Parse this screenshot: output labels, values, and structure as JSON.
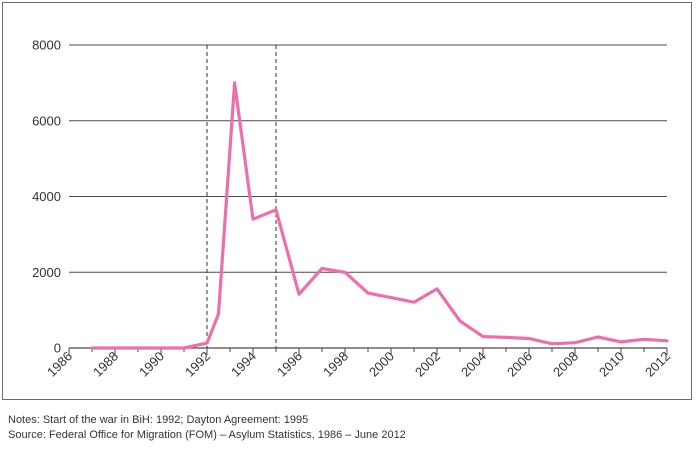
{
  "chart_data": {
    "type": "line",
    "title": "",
    "xlabel": "",
    "ylabel": "",
    "xlim": [
      1986,
      2012
    ],
    "ylim": [
      0,
      8000
    ],
    "x_ticks": [
      "1986",
      "1988",
      "1990",
      "1992",
      "1994",
      "1996",
      "1998",
      "2000",
      "2002",
      "2004",
      "2006",
      "2008",
      "2010",
      "2012"
    ],
    "y_ticks": [
      "0",
      "2000",
      "4000",
      "6000",
      "8000"
    ],
    "grid": "horizontal",
    "series": [
      {
        "color": "#ec6fab",
        "x": [
          1987,
          1988,
          1989,
          1990,
          1991,
          1992,
          1992.5,
          1993.2,
          1994,
          1995,
          1996,
          1997,
          1998,
          1999,
          2000,
          2001,
          2002,
          2003,
          2004,
          2005,
          2006,
          2007,
          2008,
          2009,
          2010,
          2011,
          2012
        ],
        "y": [
          0,
          0,
          0,
          0,
          0,
          130,
          900,
          7000,
          3400,
          3650,
          1420,
          2100,
          2000,
          1450,
          1330,
          1210,
          1560,
          710,
          300,
          280,
          250,
          110,
          140,
          290,
          160,
          230,
          190
        ]
      }
    ],
    "reference_lines_x": [
      1992,
      1995
    ],
    "reference_line_style": "dashed",
    "notes": [
      "Notes: Start of the war in BiH: 1992; Dayton Agreement: 1995",
      "Source: Federal Office for Migration (FOM) – Asylum Statistics, 1986 – June 2012"
    ]
  }
}
